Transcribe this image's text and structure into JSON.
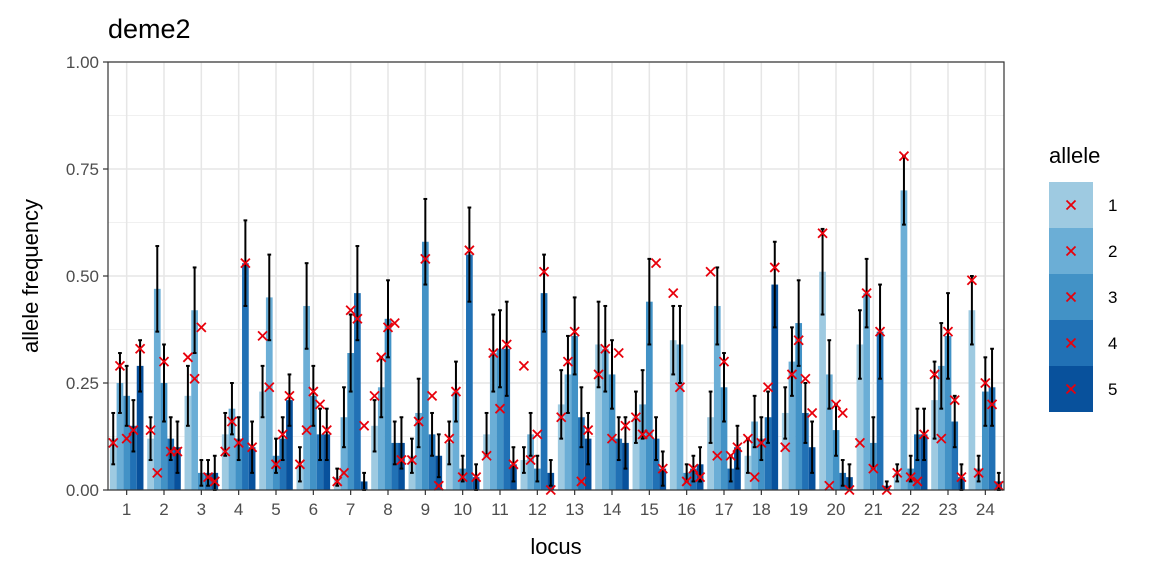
{
  "chart_data": {
    "type": "bar",
    "title": "deme2",
    "xlabel": "locus",
    "ylabel": "allele frequency",
    "ylim": [
      0,
      1
    ],
    "yticks": [
      "0.00",
      "0.25",
      "0.50",
      "0.75",
      "1.00"
    ],
    "categories": [
      "1",
      "2",
      "3",
      "4",
      "5",
      "6",
      "7",
      "8",
      "9",
      "10",
      "11",
      "12",
      "13",
      "14",
      "15",
      "16",
      "17",
      "18",
      "19",
      "20",
      "21",
      "22",
      "23",
      "24"
    ],
    "legend_title": "allele",
    "legend_position": "right",
    "grid": true,
    "colors": [
      "#9ecae1",
      "#6baed6",
      "#4292c6",
      "#2171b5",
      "#08519c"
    ],
    "marker_color": "#e8000b",
    "series": [
      {
        "name": "1",
        "values": [
          0.12,
          0.12,
          0.22,
          0.13,
          0.23,
          0.06,
          0.03,
          0.15,
          0.08,
          0.11,
          0.13,
          0.07,
          0.2,
          0.34,
          0.17,
          0.35,
          0.17,
          0.08,
          0.18,
          0.51,
          0.34,
          0.04,
          0.21,
          0.42
        ],
        "error": [
          0.06,
          0.05,
          0.07,
          0.05,
          0.06,
          0.04,
          0.02,
          0.06,
          0.04,
          0.05,
          0.05,
          0.03,
          0.08,
          0.1,
          0.06,
          0.08,
          0.06,
          0.04,
          0.06,
          0.1,
          0.08,
          0.02,
          0.09,
          0.08
        ],
        "estimates": [
          0.11,
          0.14,
          0.31,
          0.09,
          0.36,
          0.06,
          0.02,
          0.22,
          0.07,
          0.12,
          0.08,
          0.29,
          0.17,
          0.27,
          0.17,
          0.46,
          0.51,
          0.12,
          0.1,
          0.6,
          0.11,
          0.04,
          0.27,
          0.49
        ]
      },
      {
        "name": "2",
        "values": [
          0.25,
          0.47,
          0.42,
          0.19,
          0.45,
          0.43,
          0.17,
          0.24,
          0.18,
          0.23,
          0.32,
          0.13,
          0.27,
          0.33,
          0.2,
          0.34,
          0.43,
          0.16,
          0.3,
          0.27,
          0.46,
          0.7,
          0.29,
          0.05
        ],
        "error": [
          0.07,
          0.1,
          0.1,
          0.06,
          0.1,
          0.1,
          0.07,
          0.07,
          0.08,
          0.07,
          0.09,
          0.05,
          0.09,
          0.1,
          0.08,
          0.09,
          0.09,
          0.06,
          0.08,
          0.08,
          0.08,
          0.08,
          0.1,
          0.03
        ],
        "estimates": [
          0.29,
          0.04,
          0.26,
          0.16,
          0.24,
          0.14,
          0.04,
          0.31,
          0.16,
          0.23,
          0.32,
          0.07,
          0.3,
          0.33,
          0.13,
          0.24,
          0.08,
          0.03,
          0.27,
          0.01,
          0.46,
          0.78,
          0.12,
          0.04
        ]
      },
      {
        "name": "3",
        "values": [
          0.22,
          0.25,
          0.04,
          0.12,
          0.08,
          0.22,
          0.32,
          0.4,
          0.58,
          0.05,
          0.33,
          0.05,
          0.36,
          0.27,
          0.44,
          0.04,
          0.24,
          0.12,
          0.39,
          0.14,
          0.11,
          0.05,
          0.36,
          0.23
        ],
        "error": [
          0.07,
          0.09,
          0.03,
          0.05,
          0.04,
          0.07,
          0.09,
          0.09,
          0.1,
          0.03,
          0.09,
          0.03,
          0.09,
          0.08,
          0.1,
          0.02,
          0.08,
          0.05,
          0.1,
          0.06,
          0.06,
          0.03,
          0.1,
          0.08
        ],
        "estimates": [
          0.12,
          0.3,
          0.38,
          0.11,
          0.06,
          0.23,
          0.42,
          0.38,
          0.54,
          0.03,
          0.19,
          0.13,
          0.37,
          0.12,
          0.13,
          0.02,
          0.3,
          0.11,
          0.35,
          0.2,
          0.05,
          0.03,
          0.37,
          0.25
        ]
      },
      {
        "name": "4",
        "values": [
          0.15,
          0.12,
          0.04,
          0.53,
          0.12,
          0.13,
          0.46,
          0.11,
          0.13,
          0.55,
          0.33,
          0.46,
          0.17,
          0.12,
          0.12,
          0.05,
          0.05,
          0.17,
          0.18,
          0.04,
          0.37,
          0.13,
          0.16,
          0.24
        ],
        "error": [
          0.06,
          0.05,
          0.03,
          0.1,
          0.05,
          0.06,
          0.11,
          0.05,
          0.05,
          0.11,
          0.11,
          0.09,
          0.07,
          0.05,
          0.05,
          0.03,
          0.03,
          0.06,
          0.07,
          0.03,
          0.11,
          0.06,
          0.06,
          0.09
        ],
        "estimates": [
          0.14,
          0.09,
          0.03,
          0.53,
          0.13,
          0.2,
          0.4,
          0.39,
          0.22,
          0.56,
          0.34,
          0.51,
          0.02,
          0.32,
          0.53,
          0.05,
          0.08,
          0.24,
          0.26,
          0.18,
          0.37,
          0.02,
          0.21,
          0.2
        ]
      },
      {
        "name": "5",
        "values": [
          0.29,
          0.1,
          0.04,
          0.1,
          0.21,
          0.13,
          0.02,
          0.11,
          0.08,
          0.03,
          0.06,
          0.04,
          0.12,
          0.11,
          0.05,
          0.06,
          0.1,
          0.48,
          0.1,
          0.03,
          0.01,
          0.13,
          0.03,
          0.02
        ],
        "error": [
          0.06,
          0.06,
          0.04,
          0.06,
          0.06,
          0.06,
          0.02,
          0.06,
          0.05,
          0.03,
          0.04,
          0.03,
          0.06,
          0.06,
          0.04,
          0.04,
          0.05,
          0.1,
          0.06,
          0.03,
          0.01,
          0.06,
          0.03,
          0.02
        ],
        "estimates": [
          0.33,
          0.09,
          0.02,
          0.1,
          0.22,
          0.14,
          0.15,
          0.07,
          0.01,
          0.03,
          0.06,
          0.0,
          0.14,
          0.15,
          0.05,
          0.03,
          0.1,
          0.52,
          0.18,
          0.0,
          0.0,
          0.13,
          0.03,
          0.01
        ]
      }
    ]
  }
}
